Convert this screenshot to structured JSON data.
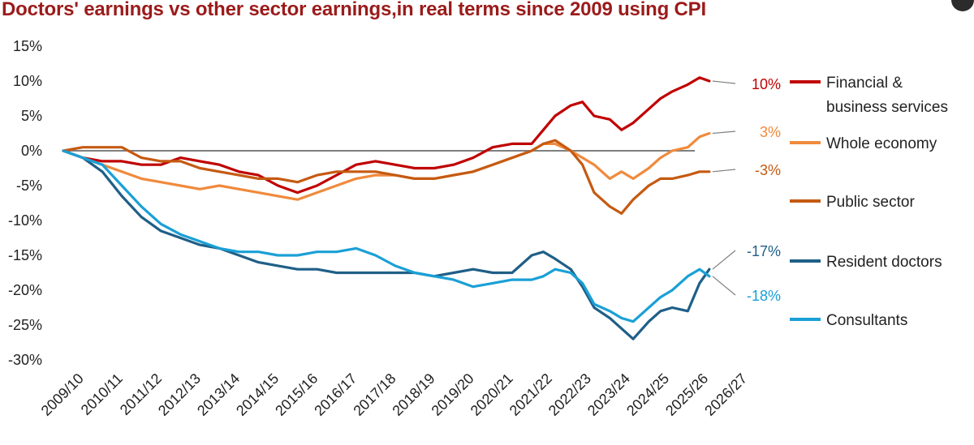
{
  "chart_data": {
    "type": "line",
    "title": "Doctors' earnings vs other sector earnings,in real terms since 2009 using CPI",
    "xlabel": "",
    "ylabel": "",
    "ylim": [
      -30,
      15
    ],
    "yticks": [
      15,
      10,
      5,
      0,
      -5,
      -10,
      -15,
      -20,
      -25,
      -30
    ],
    "ytick_labels": [
      "15%",
      "10%",
      "5%",
      "0%",
      "-5%",
      "-10%",
      "-15%",
      "-20%",
      "-25%",
      "-30%"
    ],
    "xlim": [
      2009,
      2026.8
    ],
    "xtick_labels": [
      "2009/10",
      "2010/11",
      "2011/12",
      "2012/13",
      "2013/14",
      "2014/15",
      "2015/16",
      "2016/17",
      "2017/18",
      "2018/19",
      "2019/20",
      "2020/21",
      "2021/22",
      "2022/23",
      "2023/24",
      "2024/25",
      "2025/26",
      "2026/27"
    ],
    "legend_position": "right",
    "series": [
      {
        "name": "Financial & business services",
        "label_lines": [
          "Financial &",
          "business services"
        ],
        "color": "#c00000",
        "end_label": "10%",
        "x": [
          2009.0,
          2009.5,
          2010.0,
          2010.5,
          2011.0,
          2011.5,
          2012.0,
          2012.5,
          2013.0,
          2013.5,
          2014.0,
          2014.5,
          2015.0,
          2015.5,
          2016.0,
          2016.5,
          2017.0,
          2017.5,
          2018.0,
          2018.5,
          2019.0,
          2019.5,
          2020.0,
          2020.5,
          2021.0,
          2021.3,
          2021.6,
          2022.0,
          2022.3,
          2022.6,
          2023.0,
          2023.3,
          2023.6,
          2024.0,
          2024.3,
          2024.6,
          2025.0,
          2025.3,
          2025.55
        ],
        "values": [
          0,
          -1,
          -1.5,
          -1.5,
          -2,
          -2,
          -1,
          -1.5,
          -2,
          -3,
          -3.5,
          -5,
          -6,
          -5,
          -3.5,
          -2,
          -1.5,
          -2,
          -2.5,
          -2.5,
          -2,
          -1,
          0.5,
          1,
          1,
          3,
          5,
          6.5,
          7,
          5,
          4.5,
          3,
          4,
          6,
          7.5,
          8.5,
          9.5,
          10.5,
          10
        ]
      },
      {
        "name": "Whole economy",
        "label_lines": [
          "Whole economy"
        ],
        "color": "#f08a3c",
        "end_label": "3%",
        "x": [
          2009.0,
          2009.5,
          2010.0,
          2010.5,
          2011.0,
          2011.5,
          2012.0,
          2012.5,
          2013.0,
          2013.5,
          2014.0,
          2014.5,
          2015.0,
          2015.5,
          2016.0,
          2016.5,
          2017.0,
          2017.5,
          2018.0,
          2018.5,
          2019.0,
          2019.5,
          2020.0,
          2020.5,
          2021.0,
          2021.3,
          2021.6,
          2022.0,
          2022.3,
          2022.6,
          2023.0,
          2023.3,
          2023.6,
          2024.0,
          2024.3,
          2024.6,
          2025.0,
          2025.3,
          2025.55
        ],
        "values": [
          0,
          -1,
          -2,
          -3,
          -4,
          -4.5,
          -5,
          -5.5,
          -5,
          -5.5,
          -6,
          -6.5,
          -7,
          -6,
          -5,
          -4,
          -3.5,
          -3.5,
          -4,
          -4,
          -3.5,
          -3,
          -2,
          -1,
          0,
          1,
          1,
          0,
          -1,
          -2,
          -4,
          -3,
          -4,
          -2.5,
          -1,
          0,
          0.5,
          2,
          2.5
        ]
      },
      {
        "name": "Public sector",
        "label_lines": [
          "Public sector"
        ],
        "color": "#c55a11",
        "end_label": "-3%",
        "x": [
          2009.0,
          2009.5,
          2010.0,
          2010.5,
          2011.0,
          2011.5,
          2012.0,
          2012.5,
          2013.0,
          2013.5,
          2014.0,
          2014.5,
          2015.0,
          2015.5,
          2016.0,
          2016.5,
          2017.0,
          2017.5,
          2018.0,
          2018.5,
          2019.0,
          2019.5,
          2020.0,
          2020.5,
          2021.0,
          2021.3,
          2021.6,
          2022.0,
          2022.3,
          2022.6,
          2023.0,
          2023.3,
          2023.6,
          2024.0,
          2024.3,
          2024.6,
          2025.0,
          2025.3,
          2025.55
        ],
        "values": [
          0,
          0.5,
          0.5,
          0.5,
          -1,
          -1.5,
          -1.5,
          -2.5,
          -3,
          -3.5,
          -4,
          -4,
          -4.5,
          -3.5,
          -3,
          -3,
          -3,
          -3.5,
          -4,
          -4,
          -3.5,
          -3,
          -2,
          -1,
          0,
          1,
          1.5,
          0,
          -2,
          -6,
          -8,
          -9,
          -7,
          -5,
          -4,
          -4,
          -3.5,
          -3,
          -3
        ]
      },
      {
        "name": "Resident doctors",
        "label_lines": [
          "Resident doctors"
        ],
        "color": "#1f5f87",
        "end_label": "-17%",
        "x": [
          2009.0,
          2009.5,
          2010.0,
          2010.5,
          2011.0,
          2011.5,
          2012.0,
          2012.5,
          2013.0,
          2013.5,
          2014.0,
          2014.5,
          2015.0,
          2015.5,
          2016.0,
          2016.5,
          2017.0,
          2017.5,
          2018.0,
          2018.5,
          2019.0,
          2019.5,
          2020.0,
          2020.5,
          2021.0,
          2021.3,
          2021.6,
          2022.0,
          2022.3,
          2022.6,
          2023.0,
          2023.3,
          2023.6,
          2024.0,
          2024.3,
          2024.6,
          2025.0,
          2025.3,
          2025.55
        ],
        "values": [
          0,
          -1,
          -3,
          -6.5,
          -9.5,
          -11.5,
          -12.5,
          -13.5,
          -14,
          -15,
          -16,
          -16.5,
          -17,
          -17,
          -17.5,
          -17.5,
          -17.5,
          -17.5,
          -17.5,
          -18,
          -17.5,
          -17,
          -17.5,
          -17.5,
          -15,
          -14.5,
          -15.5,
          -17,
          -19.5,
          -22.5,
          -24,
          -25.5,
          -27,
          -24.5,
          -23,
          -22.5,
          -23,
          -19,
          -17
        ]
      },
      {
        "name": "Consultants",
        "label_lines": [
          "Consultants"
        ],
        "color": "#1aa0d6",
        "end_label": "-18%",
        "x": [
          2009.0,
          2009.5,
          2010.0,
          2010.5,
          2011.0,
          2011.5,
          2012.0,
          2012.5,
          2013.0,
          2013.5,
          2014.0,
          2014.5,
          2015.0,
          2015.5,
          2016.0,
          2016.5,
          2017.0,
          2017.5,
          2018.0,
          2018.5,
          2019.0,
          2019.5,
          2020.0,
          2020.5,
          2021.0,
          2021.3,
          2021.6,
          2022.0,
          2022.3,
          2022.6,
          2023.0,
          2023.3,
          2023.6,
          2024.0,
          2024.3,
          2024.6,
          2025.0,
          2025.3,
          2025.55
        ],
        "values": [
          0,
          -1,
          -2,
          -5,
          -8,
          -10.5,
          -12,
          -13,
          -14,
          -14.5,
          -14.5,
          -15,
          -15,
          -14.5,
          -14.5,
          -14,
          -15,
          -16.5,
          -17.5,
          -18,
          -18.5,
          -19.5,
          -19,
          -18.5,
          -18.5,
          -18,
          -17,
          -17.5,
          -19,
          -22,
          -23,
          -24,
          -24.5,
          -22.5,
          -21,
          -20,
          -18,
          -17,
          -18
        ]
      }
    ]
  }
}
